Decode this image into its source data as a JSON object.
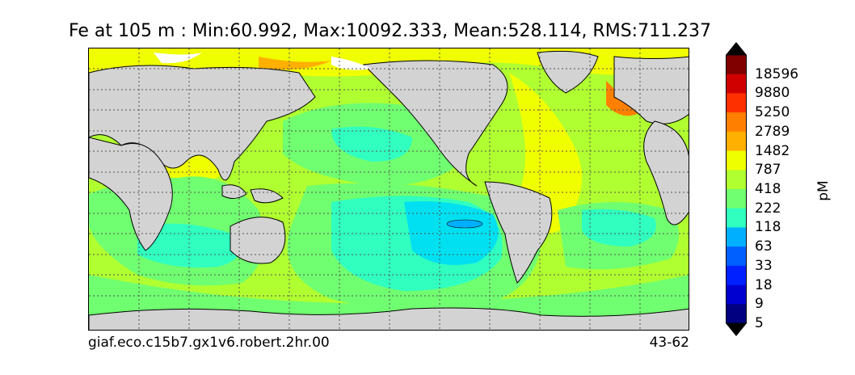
{
  "title": "Fe at 105 m : Min:60.992, Max:10092.333, Mean:528.114, RMS:711.237",
  "footer_left": "giaf.eco.c15b7.gx1v6.robert.2hr.00",
  "footer_right": "43-62",
  "colorbar": {
    "units": "pM",
    "labels": [
      "18596",
      "9880",
      "5250",
      "2789",
      "1482",
      "787",
      "418",
      "222",
      "118",
      "63",
      "33",
      "18",
      "9",
      "5"
    ],
    "colors": [
      "#800000",
      "#d00000",
      "#ff3000",
      "#ff8000",
      "#ffb000",
      "#f0ff00",
      "#b0ff30",
      "#70ff70",
      "#30ffc0",
      "#00b0ff",
      "#0060ff",
      "#0020ff",
      "#0000d0",
      "#000080"
    ],
    "over_color": "#000000",
    "under_color": "#000000"
  },
  "map": {
    "land_color": "#d3d3d3",
    "sea_ice_color": "#ffffff",
    "gridlines": "dotted"
  }
}
